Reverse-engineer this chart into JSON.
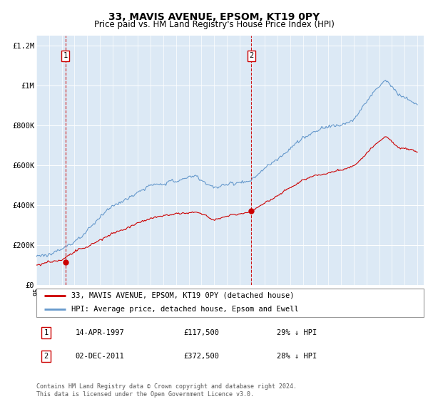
{
  "title": "33, MAVIS AVENUE, EPSOM, KT19 0PY",
  "subtitle": "Price paid vs. HM Land Registry's House Price Index (HPI)",
  "legend_label_property": "33, MAVIS AVENUE, EPSOM, KT19 0PY (detached house)",
  "legend_label_hpi": "HPI: Average price, detached house, Epsom and Ewell",
  "annotation1_date": "14-APR-1997",
  "annotation1_price": "£117,500",
  "annotation1_hpi": "29% ↓ HPI",
  "annotation2_date": "02-DEC-2011",
  "annotation2_price": "£372,500",
  "annotation2_hpi": "28% ↓ HPI",
  "footer": "Contains HM Land Registry data © Crown copyright and database right 2024.\nThis data is licensed under the Open Government Licence v3.0.",
  "property_color": "#cc0000",
  "hpi_color": "#6699cc",
  "plot_bg_color": "#dce9f5",
  "ylim": [
    0,
    1250000
  ],
  "xlim_start": 1995.0,
  "xlim_end": 2025.5,
  "sale1_year": 1997.29,
  "sale1_price": 117500,
  "sale2_year": 2011.92,
  "sale2_price": 372500
}
